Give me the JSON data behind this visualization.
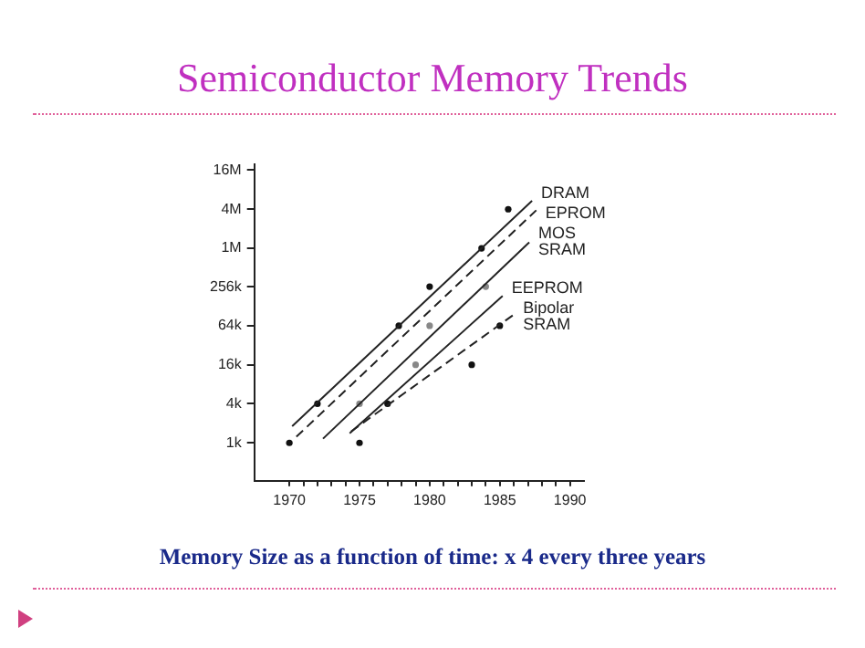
{
  "chart_data": {
    "type": "line",
    "title": "Semiconductor Memory Trends",
    "annotations": [
      "Memory Size as a function of time: x 4 every three years"
    ],
    "log": "y",
    "legend": false,
    "grid": false,
    "xlim": [
      1967.5,
      1991
    ],
    "xticks": [
      1970,
      {
        "value": 1971,
        "label": null
      },
      {
        "value": 1972,
        "label": null
      },
      {
        "value": 1973,
        "label": null
      },
      {
        "value": 1974,
        "label": null
      },
      1975,
      {
        "value": 1976,
        "label": null
      },
      {
        "value": 1977,
        "label": null
      },
      {
        "value": 1978,
        "label": null
      },
      {
        "value": 1979,
        "label": null
      },
      1980,
      {
        "value": 1981,
        "label": null
      },
      {
        "value": 1982,
        "label": null
      },
      {
        "value": 1983,
        "label": null
      },
      {
        "value": 1984,
        "label": null
      },
      1985,
      {
        "value": 1986,
        "label": null
      },
      {
        "value": 1987,
        "label": null
      },
      {
        "value": 1988,
        "label": null
      },
      {
        "value": 1989,
        "label": null
      },
      1990
    ],
    "ylim": [
      260,
      20000000
    ],
    "yticks": [
      {
        "value": 1000,
        "label": "1k"
      },
      {
        "value": 4000,
        "label": "4k"
      },
      {
        "value": 16000,
        "label": "16k"
      },
      {
        "value": 64000,
        "label": "64k"
      },
      {
        "value": 256000,
        "label": "256k"
      },
      {
        "value": 1000000,
        "label": "1M"
      },
      {
        "value": 4000000,
        "label": "4M"
      },
      {
        "value": 16000000,
        "label": "16M"
      }
    ],
    "series": [
      {
        "name": "DRAM",
        "type": "line",
        "color": "#222222",
        "line_style": "solid",
        "marker": "none",
        "x": [
          1970.2,
          1987.3
        ],
        "values": [
          1800,
          5400000
        ]
      },
      {
        "name": "EPROM",
        "type": "line",
        "color": "#222222",
        "line_style": "dashed",
        "marker": "none",
        "x": [
          1970.5,
          1987.6
        ],
        "values": [
          1240,
          3860000
        ]
      },
      {
        "name": "MOS SRAM",
        "type": "line",
        "color": "#222222",
        "line_style": "solid",
        "marker": "none",
        "x": [
          1972.4,
          1987.1
        ],
        "values": [
          1160,
          1240000
        ]
      },
      {
        "name": "EEPROM",
        "type": "line",
        "color": "#222222",
        "line_style": "solid",
        "marker": "none",
        "x": [
          1974.3,
          1985.2
        ],
        "values": [
          1400,
          184000
        ]
      },
      {
        "name": "Bipolar SRAM",
        "type": "line",
        "color": "#222222",
        "line_style": "dashed",
        "marker": "none",
        "x": [
          1974.4,
          1986
        ],
        "values": [
          1500,
          95000
        ]
      },
      {
        "type": "scatter",
        "color": "#111111",
        "marker": "circle",
        "x": [
          1970,
          1975,
          1972,
          1977,
          1977.8,
          1980,
          1983.7,
          1985.6,
          1983,
          1985
        ],
        "values": [
          1000,
          1000,
          4000,
          4000,
          64000,
          256000,
          1000000,
          4000000,
          16000,
          64000
        ]
      },
      {
        "type": "scatter",
        "color": "#888888",
        "marker": "circle",
        "x": [
          1975,
          1980,
          1984,
          1979
        ],
        "values": [
          4000,
          64000,
          256000,
          16000
        ]
      }
    ]
  }
}
